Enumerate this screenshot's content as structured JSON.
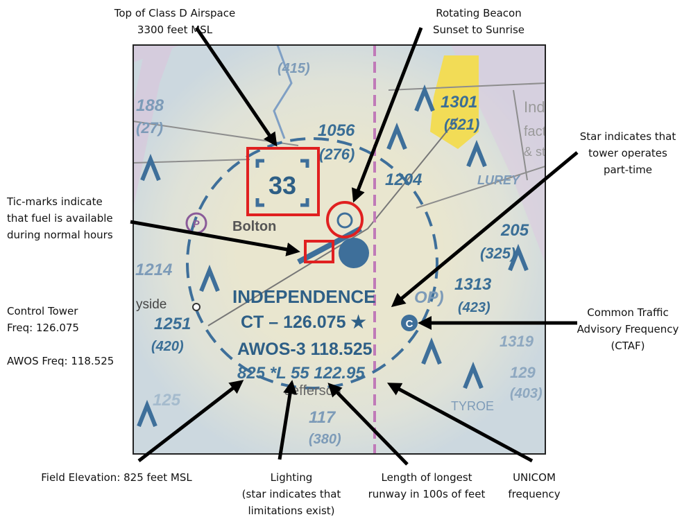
{
  "annotations": [
    {
      "lines": [
        "Top of Class D Airspace",
        "3300 feet MSL"
      ]
    },
    {
      "lines": [
        "Rotating Beacon",
        "Sunset to Sunrise"
      ]
    },
    {
      "lines": [
        "Star indicates that",
        "tower operates",
        "part-time"
      ]
    },
    {
      "lines": [
        "Tic-marks indicate",
        "that fuel is available",
        "during normal hours"
      ]
    },
    {
      "lines": [
        "Control Tower",
        "Freq: 126.075"
      ]
    },
    {
      "lines": [
        "AWOS Freq: 118.525"
      ]
    },
    {
      "lines": [
        "Common Traffic",
        "Advisory Frequency",
        "(CTAF)"
      ]
    },
    {
      "lines": [
        "Field Elevation: 825 feet MSL"
      ]
    },
    {
      "lines": [
        "Lighting",
        "(star indicates that",
        "limitations exist)"
      ]
    },
    {
      "lines": [
        "Length of longest",
        "runway in 100s of feet"
      ]
    },
    {
      "lines": [
        "UNICOM",
        "frequency"
      ]
    }
  ],
  "map_labels": [
    "33",
    "Bolton",
    "INDEPENDENCE",
    "CT – 126.075 ★",
    "C",
    "AWOS-3 118.525",
    "825 *L 55 122.95",
    "Jefferson",
    "1056",
    "(276)",
    "1204",
    "LUREY",
    "1301",
    "(521)",
    "205",
    "(325)",
    "1313",
    "(423)",
    "1319",
    "(403)",
    "1251",
    "(420)",
    "1214",
    "yside",
    "(415)",
    "188",
    "(27)",
    "TYROE",
    "117",
    "(380)",
    "125",
    "Inde",
    "factor",
    "& st",
    "OP)",
    "P",
    "129"
  ]
}
